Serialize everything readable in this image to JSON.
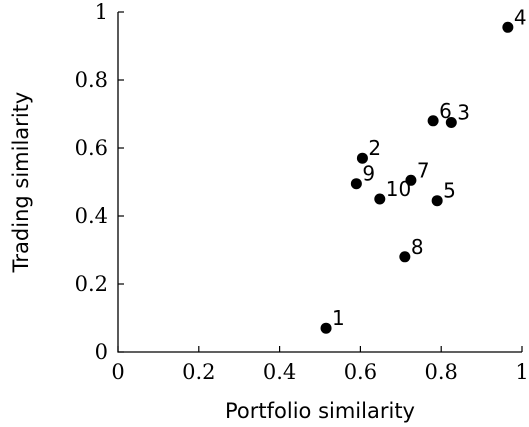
{
  "chart_data": {
    "type": "scatter",
    "title": "",
    "xlabel": "Portfolio similarity",
    "ylabel": "Trading similarity",
    "xlim": [
      0,
      1
    ],
    "ylim": [
      0,
      1
    ],
    "xticks": [
      0,
      0.2,
      0.4,
      0.6,
      0.8,
      1
    ],
    "yticks": [
      0,
      0.2,
      0.4,
      0.6,
      0.8,
      1
    ],
    "xtick_labels": [
      "0",
      "0.2",
      "0.4",
      "0.6",
      "0.8",
      "1"
    ],
    "ytick_labels": [
      "0",
      "0.2",
      "0.4",
      "0.6",
      "0.8",
      "1"
    ],
    "grid": false,
    "marker_color": "#000000",
    "points": [
      {
        "label": "1",
        "x": 0.515,
        "y": 0.07
      },
      {
        "label": "2",
        "x": 0.605,
        "y": 0.57
      },
      {
        "label": "3",
        "x": 0.825,
        "y": 0.675
      },
      {
        "label": "4",
        "x": 0.965,
        "y": 0.955
      },
      {
        "label": "5",
        "x": 0.79,
        "y": 0.445
      },
      {
        "label": "6",
        "x": 0.78,
        "y": 0.68
      },
      {
        "label": "7",
        "x": 0.725,
        "y": 0.505
      },
      {
        "label": "8",
        "x": 0.71,
        "y": 0.28
      },
      {
        "label": "9",
        "x": 0.59,
        "y": 0.495
      },
      {
        "label": "10",
        "x": 0.648,
        "y": 0.45
      }
    ]
  }
}
